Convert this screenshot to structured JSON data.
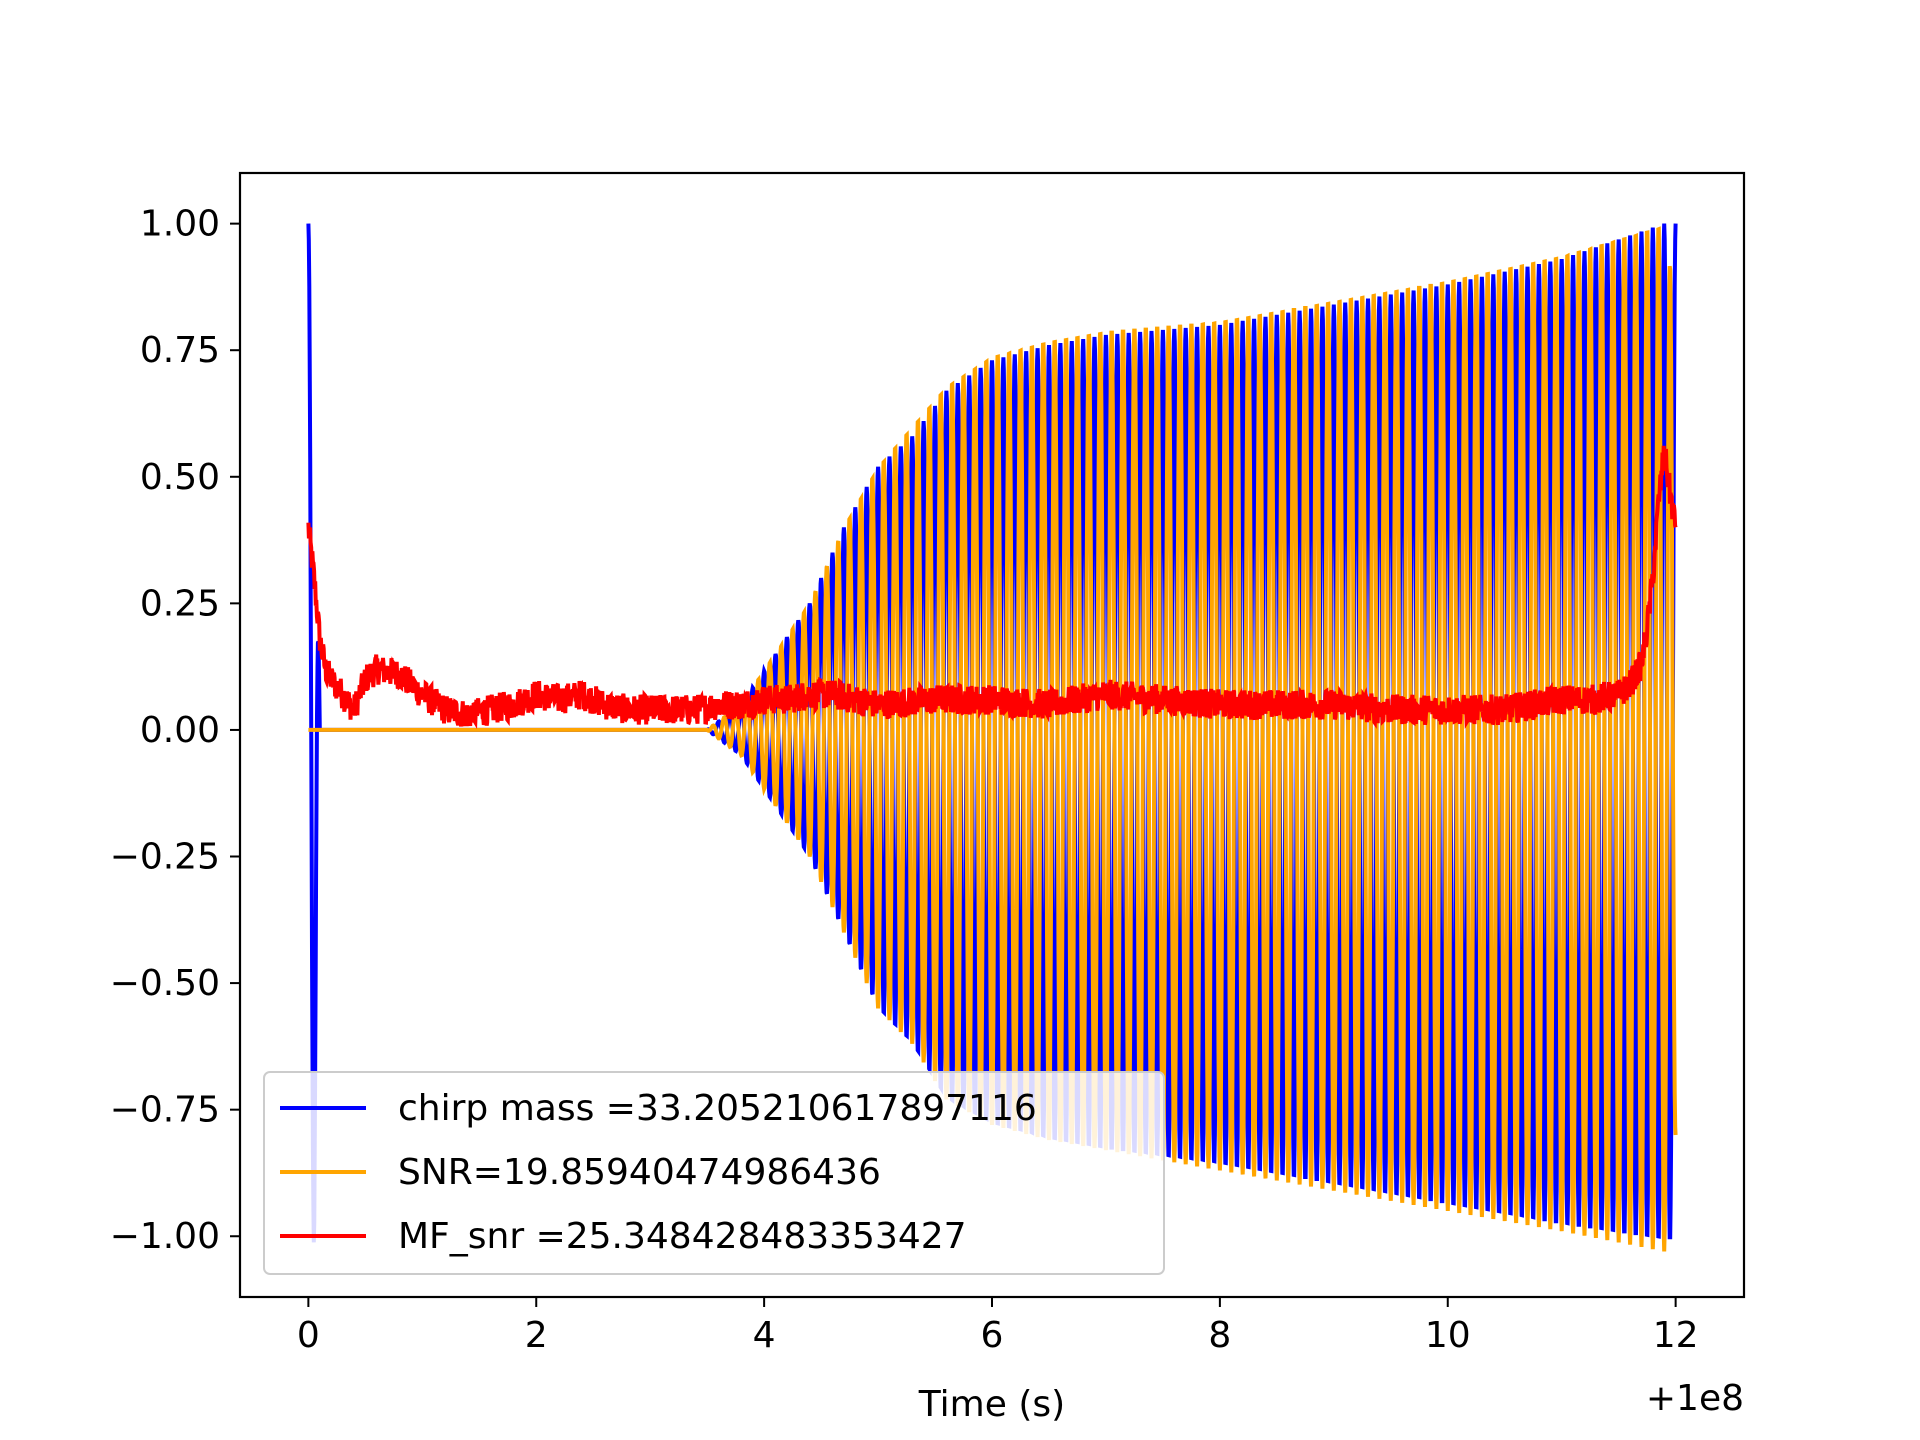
{
  "chart_data": {
    "type": "line",
    "title": "",
    "xlabel": "Time (s)",
    "ylabel": "",
    "x_offset_label": "+1e8",
    "xlim": [
      -0.6,
      12.6
    ],
    "ylim": [
      -1.12,
      1.1
    ],
    "xticks": [
      0,
      2,
      4,
      6,
      8,
      10,
      12
    ],
    "xtick_labels": [
      "0",
      "2",
      "4",
      "6",
      "8",
      "10",
      "12"
    ],
    "yticks": [
      1.0,
      0.75,
      0.5,
      0.25,
      0.0,
      -0.25,
      -0.5,
      -0.75,
      -1.0
    ],
    "ytick_labels": [
      "1.00",
      "0.75",
      "0.50",
      "0.25",
      "0.00",
      "−0.25",
      "−0.50",
      "−0.75",
      "−1.00"
    ],
    "grid": false,
    "legend_position": "lower-left",
    "series": [
      {
        "name": "chirp mass =33.205210617897116",
        "color": "#0000ff",
        "kind": "oscillation",
        "x_start": 0.0,
        "x_end": 12.0,
        "oscillation_period": 0.1,
        "envelope": [
          [
            0,
            1.0
          ],
          [
            0.05,
            1.0
          ],
          [
            0.1,
            0.0
          ],
          [
            3.5,
            0.0
          ],
          [
            3.8,
            0.05
          ],
          [
            4.1,
            0.15
          ],
          [
            4.4,
            0.25
          ],
          [
            4.7,
            0.4
          ],
          [
            5.0,
            0.52
          ],
          [
            5.3,
            0.58
          ],
          [
            5.6,
            0.67
          ],
          [
            6.0,
            0.73
          ],
          [
            6.5,
            0.76
          ],
          [
            7.0,
            0.78
          ],
          [
            8.0,
            0.8
          ],
          [
            9.0,
            0.84
          ],
          [
            10.0,
            0.88
          ],
          [
            11.0,
            0.93
          ],
          [
            11.9,
            1.0
          ],
          [
            12.0,
            1.0
          ]
        ],
        "negative_envelope": [
          [
            0,
            1.02
          ],
          [
            0.05,
            1.02
          ],
          [
            0.1,
            0.0
          ],
          [
            3.5,
            0.0
          ],
          [
            3.8,
            0.05
          ],
          [
            4.1,
            0.15
          ],
          [
            4.4,
            0.25
          ],
          [
            4.7,
            0.4
          ],
          [
            5.0,
            0.55
          ],
          [
            5.3,
            0.62
          ],
          [
            5.6,
            0.73
          ],
          [
            6.0,
            0.78
          ],
          [
            6.5,
            0.81
          ],
          [
            7.0,
            0.83
          ],
          [
            8.0,
            0.86
          ],
          [
            9.0,
            0.9
          ],
          [
            10.0,
            0.94
          ],
          [
            11.0,
            0.98
          ],
          [
            11.9,
            1.01
          ],
          [
            12.0,
            1.01
          ]
        ]
      },
      {
        "name": "SNR=19.85940474986436",
        "color": "#ffa500",
        "kind": "oscillation",
        "x_start": 0.0,
        "x_end": 12.0,
        "oscillation_period": 0.1,
        "phase_shift": 0.5,
        "envelope": [
          [
            0,
            0.0
          ],
          [
            3.5,
            0.0
          ],
          [
            3.8,
            0.05
          ],
          [
            4.1,
            0.15
          ],
          [
            4.4,
            0.25
          ],
          [
            4.7,
            0.4
          ],
          [
            5.0,
            0.52
          ],
          [
            5.3,
            0.6
          ],
          [
            5.6,
            0.68
          ],
          [
            6.0,
            0.74
          ],
          [
            6.5,
            0.77
          ],
          [
            7.0,
            0.79
          ],
          [
            8.0,
            0.81
          ],
          [
            9.0,
            0.85
          ],
          [
            10.0,
            0.89
          ],
          [
            11.0,
            0.94
          ],
          [
            11.9,
            1.0
          ],
          [
            12.0,
            0.84
          ]
        ],
        "negative_envelope": [
          [
            0,
            0.0
          ],
          [
            3.5,
            0.0
          ],
          [
            3.8,
            0.05
          ],
          [
            4.1,
            0.15
          ],
          [
            4.4,
            0.25
          ],
          [
            4.7,
            0.4
          ],
          [
            5.0,
            0.55
          ],
          [
            5.3,
            0.62
          ],
          [
            5.6,
            0.73
          ],
          [
            6.0,
            0.78
          ],
          [
            6.5,
            0.81
          ],
          [
            7.0,
            0.83
          ],
          [
            8.0,
            0.87
          ],
          [
            9.0,
            0.91
          ],
          [
            10.0,
            0.95
          ],
          [
            11.0,
            0.99
          ],
          [
            11.9,
            1.03
          ],
          [
            12.0,
            0.8
          ]
        ]
      },
      {
        "name": "MF_snr =25.348428483353427",
        "color": "#ff0000",
        "kind": "noisy",
        "x": [
          0.0,
          0.05,
          0.1,
          0.15,
          0.2,
          0.3,
          0.4,
          0.5,
          0.6,
          0.8,
          1.0,
          1.2,
          1.4,
          1.6,
          1.8,
          2.0,
          2.2,
          2.4,
          2.6,
          2.8,
          3.0,
          3.2,
          3.4,
          3.6,
          3.8,
          4.0,
          4.2,
          4.4,
          4.6,
          4.8,
          5.0,
          5.5,
          6.0,
          6.5,
          7.0,
          7.5,
          8.0,
          8.5,
          9.0,
          9.5,
          10.0,
          10.5,
          11.0,
          11.3,
          11.5,
          11.6,
          11.7,
          11.75,
          11.8,
          11.85,
          11.9,
          11.95,
          12.0
        ],
        "y": [
          0.4,
          0.3,
          0.18,
          0.12,
          0.1,
          0.07,
          0.04,
          0.1,
          0.12,
          0.11,
          0.07,
          0.04,
          0.03,
          0.04,
          0.05,
          0.07,
          0.06,
          0.07,
          0.05,
          0.04,
          0.04,
          0.04,
          0.04,
          0.05,
          0.05,
          0.06,
          0.06,
          0.07,
          0.07,
          0.06,
          0.05,
          0.06,
          0.06,
          0.05,
          0.07,
          0.06,
          0.05,
          0.05,
          0.05,
          0.04,
          0.04,
          0.04,
          0.06,
          0.06,
          0.07,
          0.09,
          0.13,
          0.2,
          0.3,
          0.45,
          0.55,
          0.47,
          0.4
        ],
        "noise_amplitude": 0.03
      }
    ]
  }
}
